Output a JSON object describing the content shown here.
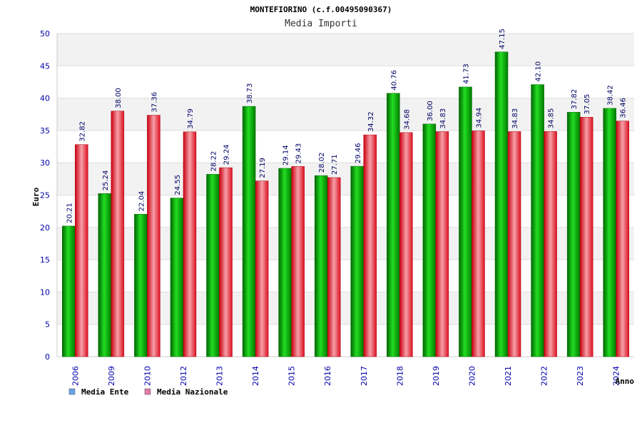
{
  "chart_data": {
    "type": "bar",
    "title": "MONTEFIORINO (c.f.00495090367)",
    "subtitle": "Media Importi",
    "ylabel": "Euro",
    "xlabel": "Anno",
    "ylim": [
      0,
      50
    ],
    "yticks": [
      0,
      5,
      10,
      15,
      20,
      25,
      30,
      35,
      40,
      45,
      50
    ],
    "grid": true,
    "legend_position": "bottom-left",
    "categories": [
      "2006",
      "2009",
      "2010",
      "2012",
      "2013",
      "2014",
      "2015",
      "2016",
      "2017",
      "2018",
      "2019",
      "2020",
      "2021",
      "2022",
      "2023",
      "2024"
    ],
    "series": [
      {
        "name": "Media Ente",
        "legend_color": "#66a3e6",
        "bar_color": "#00bb00",
        "values": [
          20.21,
          25.24,
          22.04,
          24.55,
          28.22,
          38.73,
          29.14,
          28.02,
          29.46,
          40.76,
          36.0,
          41.73,
          47.15,
          42.1,
          37.82,
          38.42
        ],
        "labels": [
          "20.21",
          "25.24",
          "22.04",
          "24.55",
          "28.22",
          "38.73",
          "29.14",
          "28.02",
          "29.46",
          "40.76",
          "36.00",
          "41.73",
          "47.15",
          "42.10",
          "37.82",
          "38.42"
        ]
      },
      {
        "name": "Media Nazionale",
        "legend_color": "#e07aa8",
        "bar_color": "#ee1c2c",
        "values": [
          32.82,
          38.0,
          37.36,
          34.79,
          29.24,
          27.19,
          29.43,
          27.71,
          34.32,
          34.68,
          34.83,
          34.94,
          34.83,
          34.85,
          37.05,
          36.46
        ],
        "labels": [
          "32.82",
          "38.00",
          "37.36",
          "34.79",
          "29.24",
          "27.19",
          "29.43",
          "27.71",
          "34.32",
          "34.68",
          "34.83",
          "34.94",
          "34.83",
          "34.85",
          "37.05",
          "36.46"
        ]
      }
    ]
  }
}
